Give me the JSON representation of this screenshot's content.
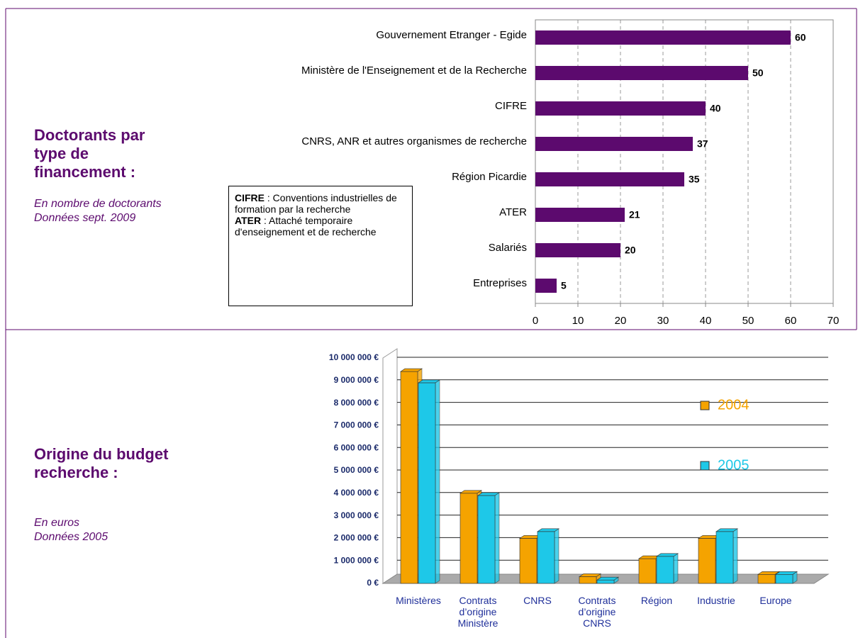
{
  "left_panels": [
    {
      "title": "Doctorants par type de financement :",
      "subtitle": [
        "En nombre de doctorants",
        "Données sept. 2009"
      ]
    },
    {
      "title": "Origine du budget recherche :",
      "subtitle": [
        "En euros",
        "Données 2005"
      ]
    }
  ],
  "note": [
    {
      "term": "CIFRE",
      "text": " : Conventions industrielles de formation par la recherche"
    },
    {
      "term": "ATER",
      "text": " : Attaché temporaire d'enseignement et de recherche"
    }
  ],
  "chart_data": [
    {
      "type": "barh",
      "categories": [
        "Gouvernement Etranger - Egide",
        "Ministère de l'Enseignement et de la Recherche",
        "CIFRE",
        "CNRS, ANR et autres organismes de recherche",
        "Région Picardie",
        "ATER",
        "Salariés",
        "Entreprises"
      ],
      "values": [
        60,
        50,
        40,
        37,
        35,
        21,
        20,
        5
      ],
      "color": "#5c0a6e",
      "xlim": [
        0,
        70
      ],
      "xticks": [
        0,
        10,
        20,
        30,
        40,
        50,
        60,
        70
      ],
      "grid": true
    },
    {
      "type": "bar3d",
      "categories": [
        "Ministères",
        "Contrats d’origine Ministère",
        "CNRS",
        "Contrats d’origine CNRS",
        "Région",
        "Industrie",
        "Europe"
      ],
      "series": [
        {
          "name": "2004",
          "color": "#f5a300",
          "values": [
            9400000,
            4000000,
            2000000,
            300000,
            1100000,
            2000000,
            400000
          ]
        },
        {
          "name": "2005",
          "color": "#1ec8e8",
          "values": [
            8900000,
            3900000,
            2300000,
            150000,
            1200000,
            2300000,
            400000
          ]
        }
      ],
      "ylim": [
        0,
        10000000
      ],
      "yticks": [
        {
          "value": 0,
          "label": "0 €"
        },
        {
          "value": 1000000,
          "label": "1 000 000 €"
        },
        {
          "value": 2000000,
          "label": "2 000 000 €"
        },
        {
          "value": 3000000,
          "label": "3 000 000 €"
        },
        {
          "value": 4000000,
          "label": "4 000 000 €"
        },
        {
          "value": 5000000,
          "label": "5 000 000 €"
        },
        {
          "value": 6000000,
          "label": "6 000 000 €"
        },
        {
          "value": 7000000,
          "label": "7 000 000 €"
        },
        {
          "value": 8000000,
          "label": "8 000 000 €"
        },
        {
          "value": 9000000,
          "label": "9 000 000 €"
        },
        {
          "value": 10000000,
          "label": "10 000 000 €"
        }
      ],
      "grid": true
    }
  ]
}
